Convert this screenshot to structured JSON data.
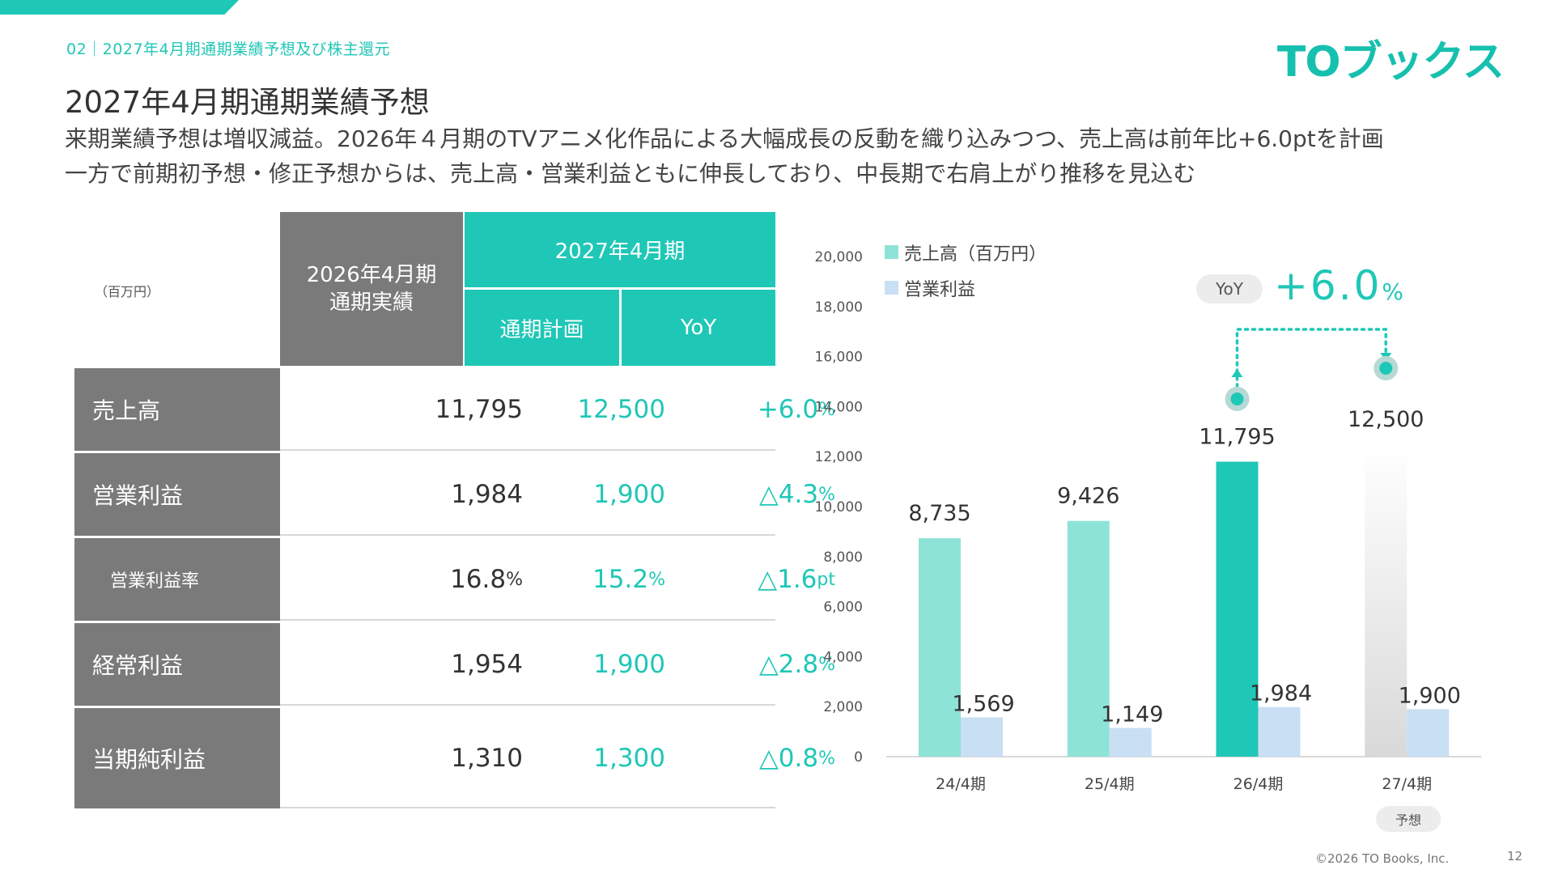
{
  "header": {
    "breadcrumb": "02｜2027年4月期通期業績予想及び株主還元",
    "logo": "TOブックス",
    "title": "2027年4月期通期業績予想",
    "subtitle_line1": "来期業績予想は増収減益。2026年４月期のTVアニメ化作品による大幅成長の反動を織り込みつつ、売上高は前年比+6.0ptを計画",
    "subtitle_line2": "一方で前期初予想・修正予想からは、売上高・営業利益ともに伸長しており、中長期で右肩上がり推移を見込む"
  },
  "table": {
    "unit_note": "（百万円）",
    "col_actual": "2026年4月期\n通期実績",
    "col_year": "2027年4月期",
    "col_plan": "通期計画",
    "col_yoy": "YoY",
    "rows": [
      {
        "label": "売上高",
        "actual": "11,795",
        "plan": "12,500",
        "yoy": "+6.0",
        "yoy_unit": "%",
        "actual_unit": "",
        "plan_unit": ""
      },
      {
        "label": "営業利益",
        "actual": "1,984",
        "plan": "1,900",
        "yoy": "△4.3",
        "yoy_unit": "%",
        "actual_unit": "",
        "plan_unit": ""
      },
      {
        "label": "営業利益率",
        "actual": "16.8",
        "plan": "15.2",
        "yoy": "△1.6",
        "yoy_unit": "pt",
        "actual_unit": "%",
        "plan_unit": "%"
      },
      {
        "label": "経常利益",
        "actual": "1,954",
        "plan": "1,900",
        "yoy": "△2.8",
        "yoy_unit": "%",
        "actual_unit": "",
        "plan_unit": ""
      },
      {
        "label": "当期純利益",
        "actual": "1,310",
        "plan": "1,300",
        "yoy": "△0.8",
        "yoy_unit": "%",
        "actual_unit": "",
        "plan_unit": ""
      }
    ]
  },
  "chart_data": {
    "type": "bar",
    "categories": [
      "24/4期",
      "25/4期",
      "26/4期",
      "27/4期"
    ],
    "series": [
      {
        "name": "売上高（百万円）",
        "values": [
          8735,
          9426,
          11795,
          12500
        ]
      },
      {
        "name": "営業利益",
        "values": [
          1569,
          1149,
          1984,
          1900
        ]
      }
    ],
    "value_labels": {
      "sales": [
        "8,735",
        "9,426",
        "11,795",
        "12,500"
      ],
      "profit": [
        "1,569",
        "1,149",
        "1,984",
        "1,900"
      ]
    },
    "yticks": [
      "0",
      "2,000",
      "4,000",
      "6,000",
      "8,000",
      "10,000",
      "12,000",
      "14,000",
      "16,000",
      "18,000",
      "20,000"
    ],
    "ylim": [
      0,
      20000
    ],
    "legend_position": "top-left",
    "forecast_label": "予想",
    "yoy_label": "YoY",
    "yoy_value": "+6.0",
    "yoy_unit": "%",
    "colors": {
      "sales": "#8ee3d7",
      "sales_highlight": "#1fc7b6",
      "profit": "#c9dff4",
      "forecast": "#d9d9d9"
    }
  },
  "footer": {
    "copyright": "©2026 TO Books, Inc.",
    "page": "12"
  }
}
